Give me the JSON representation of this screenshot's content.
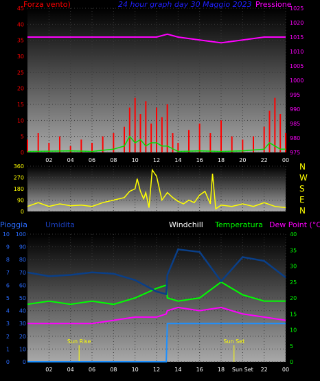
{
  "charts": {
    "top": {
      "left_label": "Forza vento",
      "left_suffix": ")",
      "center_title": "24 hour graph day  30 Maggio 2023",
      "right_label": "Pressione",
      "left_ticks": [
        "45",
        "40",
        "35",
        "30",
        "25",
        "20",
        "15",
        "10",
        "5",
        "0"
      ],
      "right_ticks": [
        "1025",
        "1020",
        "1015",
        "1010",
        "1005",
        "1000",
        "995",
        "990",
        "985",
        "980",
        "975"
      ],
      "x_ticks": [
        "02",
        "04",
        "06",
        "08",
        "10",
        "12",
        "14",
        "16",
        "18",
        "20",
        "22",
        "00"
      ]
    },
    "middle": {
      "left_ticks": [
        "360",
        "270",
        "180",
        "90",
        "0"
      ],
      "compass": [
        "N",
        "W",
        "S",
        "E",
        "N"
      ],
      "x_ticks": [
        "02",
        "04",
        "06",
        "08",
        "10",
        "12",
        "14",
        "16",
        "18",
        "20",
        "22",
        "00"
      ]
    },
    "bottom": {
      "labels": {
        "pioggia": "Pioggia",
        "umidita": "Umidita",
        "windchill": "Windchill",
        "temperatura": "Temperatura",
        "dewpoint": "Dew Point (°C)"
      },
      "rain_ticks": [
        "10",
        "9",
        "8",
        "7",
        "6",
        "5",
        "4",
        "3",
        "2",
        "1",
        "0"
      ],
      "hum_ticks": [
        "100",
        "90",
        "80",
        "70",
        "60",
        "50",
        "40",
        "30",
        "20",
        "10",
        "0"
      ],
      "temp_ticks": [
        "40",
        "35",
        "30",
        "25",
        "20",
        "15",
        "10",
        "5",
        "0"
      ],
      "x_ticks": [
        "02",
        "04",
        "06",
        "08",
        "10",
        "12",
        "14",
        "16",
        "18",
        "Sun Set",
        "22",
        "00"
      ],
      "sunrise": "Sun Rise",
      "sunset": "Sun Set"
    }
  },
  "colors": {
    "wind": "#ff0000",
    "gust": "#00e000",
    "pressure": "#ff00ff",
    "direction": "#ffff00",
    "humidity": "#0a3f88",
    "temperature": "#00ff00",
    "dewpoint": "#ff00ff",
    "rain": "#1e90ff",
    "axis_red": "#ff0000",
    "axis_magenta": "#ff00ff",
    "axis_blue": "#2a6cff",
    "axis_green": "#00ff00",
    "axis_yellow": "#ffff00"
  },
  "chart_data": [
    {
      "type": "line",
      "title": "24 hour graph day  30 Maggio 2023",
      "ylabel": "Forza vento",
      "y2label": "Pressione",
      "ylim": [
        0,
        45
      ],
      "y2lim": [
        975,
        1025
      ],
      "x": [
        0,
        2,
        4,
        6,
        8,
        10,
        12,
        13,
        14,
        16,
        18,
        20,
        22,
        24
      ],
      "series": [
        {
          "name": "Pressione",
          "axis": "right",
          "values": [
            1015,
            1015,
            1015,
            1015,
            1015,
            1015,
            1015,
            1016,
            1015,
            1014,
            1013,
            1014,
            1015,
            1015
          ]
        }
      ],
      "wind_x": [
        0,
        1,
        2,
        3,
        4,
        5,
        6,
        7,
        8,
        9,
        9.5,
        10,
        10.5,
        11,
        11.5,
        12,
        12.5,
        13,
        13.5,
        14,
        15,
        16,
        17,
        18,
        19,
        20,
        21,
        22,
        22.5,
        23,
        23.5,
        24
      ],
      "wind_values": [
        4,
        6,
        3,
        5,
        2,
        4,
        3,
        5,
        6,
        8,
        14,
        17,
        12,
        16,
        9,
        14,
        11,
        15,
        6,
        3,
        7,
        9,
        6,
        10,
        5,
        4,
        5,
        8,
        13,
        17,
        12,
        6
      ],
      "gust_x": [
        0,
        4,
        6,
        8,
        9,
        9.5,
        10,
        10.5,
        11,
        11.5,
        12,
        12.5,
        13,
        14,
        16,
        18,
        20,
        22,
        22.5,
        23,
        23.5,
        24
      ],
      "gust_values": [
        0.3,
        0.5,
        0.3,
        1,
        2,
        5,
        3,
        4,
        2,
        3,
        3,
        2,
        2,
        0.3,
        0.5,
        0.3,
        0.5,
        1,
        3,
        2,
        1,
        1
      ]
    },
    {
      "type": "line",
      "ylabel": "direction",
      "ylim": [
        0,
        360
      ],
      "x": [
        0,
        1,
        2,
        3,
        4,
        5,
        6,
        7,
        8,
        9,
        9.5,
        10,
        10.2,
        10.5,
        10.8,
        11,
        11.3,
        11.6,
        12,
        12.5,
        13,
        13.5,
        14,
        14.5,
        15,
        15.5,
        16,
        16.5,
        17,
        17.2,
        17.5,
        18,
        19,
        20,
        21,
        22,
        23,
        24
      ],
      "series": [
        {
          "name": "direction",
          "values": [
            40,
            70,
            40,
            60,
            45,
            50,
            40,
            70,
            90,
            110,
            160,
            180,
            260,
            160,
            100,
            150,
            30,
            330,
            280,
            90,
            150,
            110,
            80,
            60,
            90,
            70,
            130,
            160,
            60,
            300,
            20,
            50,
            40,
            60,
            40,
            70,
            40,
            30
          ]
        }
      ]
    },
    {
      "type": "line",
      "ylabel": "Pioggia",
      "ylim": [
        0,
        10
      ],
      "x": [
        0,
        2,
        4,
        6,
        8,
        10,
        12,
        12.9,
        13,
        14,
        16,
        18,
        20,
        22,
        24
      ],
      "series": [
        {
          "name": "Pioggia",
          "axis": "rain",
          "values": [
            0,
            0,
            0,
            0,
            0,
            0,
            0,
            0,
            3,
            3,
            3,
            3,
            3,
            3,
            3
          ]
        },
        {
          "name": "Umidita",
          "axis": "humidity",
          "values": [
            70,
            67,
            68,
            70,
            69,
            64,
            55,
            53,
            68,
            88,
            86,
            63,
            82,
            79,
            66
          ]
        },
        {
          "name": "Temperatura",
          "axis": "temp",
          "values": [
            18,
            19,
            18,
            19,
            18,
            20,
            23,
            24,
            20,
            19,
            20,
            25,
            21,
            19,
            19
          ]
        },
        {
          "name": "Dew Point (°C)",
          "axis": "temp",
          "values": [
            12,
            12,
            12,
            12,
            13,
            14,
            14,
            15,
            16,
            17,
            16,
            17,
            15,
            14,
            13
          ]
        }
      ],
      "humidity_lim": [
        0,
        100
      ],
      "temp_lim": [
        0,
        40
      ],
      "annotations": [
        {
          "text": "Sun Rise",
          "x": 4.8
        },
        {
          "text": "Sun Set",
          "x": 19.2
        }
      ]
    }
  ]
}
